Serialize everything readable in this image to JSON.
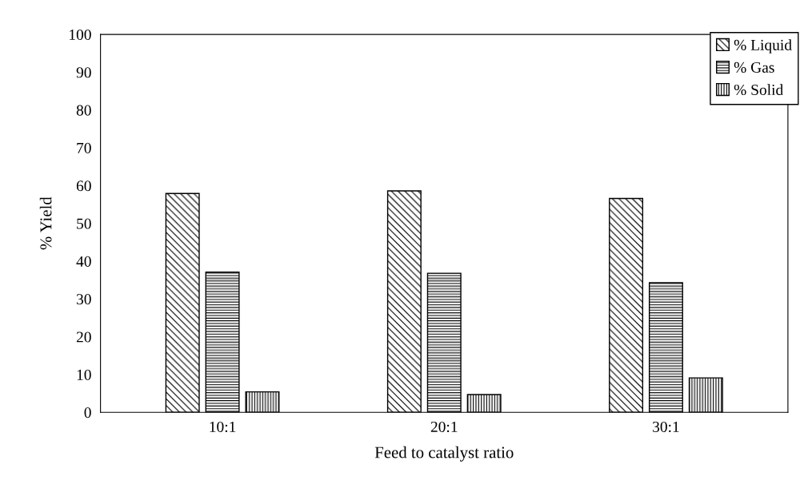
{
  "chart_data": {
    "type": "bar",
    "xlabel": "Feed to catalyst ratio",
    "ylabel": "% Yield",
    "categories": [
      "10:1",
      "20:1",
      "30:1"
    ],
    "series": [
      {
        "name": "% Liquid",
        "color": "#000000",
        "values": [
          57.9,
          58.6,
          56.6
        ]
      },
      {
        "name": "% Gas",
        "color": "#000000",
        "values": [
          37.1,
          36.8,
          34.3
        ]
      },
      {
        "name": "% Solid",
        "color": "#000000",
        "values": [
          5.4,
          4.7,
          9.1
        ]
      }
    ],
    "ylim": [
      0,
      100
    ],
    "yticks": [
      0,
      10,
      20,
      30,
      40,
      50,
      60,
      70,
      80,
      90,
      100
    ],
    "grid": false,
    "legend": "top right"
  }
}
